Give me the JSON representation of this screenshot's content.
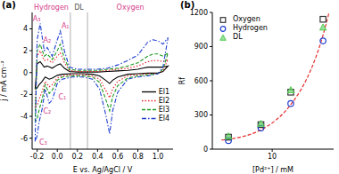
{
  "chart_data": [
    {
      "type": "line",
      "title": "(a)",
      "x_label": "E vs. Ag/AgCl / V",
      "y_label": "j / mA cm⁻²",
      "xlim": [
        -0.25,
        1.15
      ],
      "xticks": [
        -0.2,
        {
          "value": 0,
          "label": "0.0"
        },
        0.2,
        0.4,
        0.6,
        0.8,
        {
          "value": 1,
          "label": "1.0"
        }
      ],
      "ylim": [
        -7,
        5.5
      ],
      "yticks": [
        -6,
        -4,
        -2,
        0,
        2,
        4
      ],
      "legend": "center right",
      "x": [
        -0.22,
        -0.2,
        -0.17,
        -0.13,
        -0.1,
        -0.05,
        0.0,
        0.03,
        0.07,
        0.12,
        0.2,
        0.3,
        0.4,
        0.5,
        0.6,
        0.7,
        0.8,
        0.85,
        0.9,
        0.95,
        1.0,
        1.05,
        1.1,
        1.05,
        1.0,
        0.9,
        0.8,
        0.7,
        0.6,
        0.55,
        0.52,
        0.48,
        0.42,
        0.35,
        0.25,
        0.15,
        0.05,
        0.0,
        -0.05,
        -0.08,
        -0.12,
        -0.15,
        -0.18,
        -0.2,
        -0.22
      ],
      "series": [
        {
          "name": "El1",
          "color": "#000000",
          "line_style": "solid",
          "values": [
            -1.5,
            0.8,
            1.0,
            0.5,
            0.6,
            0.4,
            0.7,
            0.8,
            0.4,
            0.1,
            0.05,
            0.05,
            0.05,
            0.1,
            0.15,
            0.2,
            0.3,
            0.4,
            0.5,
            0.5,
            0.5,
            0.5,
            0.6,
            0.1,
            -0.05,
            -0.05,
            -0.1,
            -0.15,
            -0.4,
            -0.7,
            -1.0,
            -0.7,
            -0.3,
            -0.15,
            -0.1,
            -0.1,
            -0.15,
            -0.25,
            -0.5,
            -0.6,
            -0.4,
            -0.8,
            -1.1,
            -1.4,
            -1.5
          ]
        },
        {
          "name": "El2",
          "color": "#e8202a",
          "line_style": "dotted",
          "values": [
            -3.2,
            1.5,
            2.0,
            1.1,
            1.2,
            0.9,
            1.5,
            1.8,
            0.9,
            0.2,
            0.1,
            0.1,
            0.1,
            0.2,
            0.3,
            0.4,
            0.6,
            0.8,
            1.0,
            1.1,
            1.1,
            1.0,
            1.2,
            0.2,
            -0.1,
            -0.1,
            -0.2,
            -0.3,
            -0.8,
            -1.5,
            -2.3,
            -1.6,
            -0.6,
            -0.3,
            -0.2,
            -0.2,
            -0.3,
            -0.5,
            -1.1,
            -1.3,
            -0.8,
            -1.7,
            -2.4,
            -3.0,
            -3.2
          ]
        },
        {
          "name": "El3",
          "color": "#1e9a1e",
          "line_style": "dashed",
          "values": [
            -4.5,
            2.0,
            2.6,
            1.5,
            1.7,
            1.2,
            2.0,
            2.6,
            1.3,
            0.3,
            0.2,
            0.2,
            0.2,
            0.3,
            0.4,
            0.6,
            0.9,
            1.2,
            1.5,
            1.7,
            1.7,
            1.5,
            1.8,
            0.3,
            -0.1,
            -0.2,
            -0.3,
            -0.5,
            -1.2,
            -2.2,
            -3.5,
            -2.4,
            -0.9,
            -0.4,
            -0.3,
            -0.3,
            -0.4,
            -0.7,
            -1.6,
            -1.9,
            -1.1,
            -2.4,
            -3.4,
            -4.2,
            -4.5
          ]
        },
        {
          "name": "El4",
          "color": "#1f3fd0",
          "line_style": "dashdot",
          "values": [
            -6.3,
            3.0,
            4.5,
            2.0,
            2.3,
            1.5,
            3.0,
            3.8,
            2.0,
            0.5,
            0.3,
            0.3,
            0.3,
            0.4,
            0.7,
            1.1,
            1.6,
            2.2,
            2.8,
            3.0,
            2.9,
            2.6,
            3.2,
            0.5,
            -0.1,
            -0.3,
            -0.4,
            -0.6,
            -1.8,
            -3.5,
            -5.6,
            -3.8,
            -1.5,
            -0.6,
            -0.4,
            -0.4,
            -0.6,
            -1.0,
            -2.5,
            -2.8,
            -1.5,
            -3.3,
            -4.5,
            -5.8,
            -6.3
          ]
        }
      ],
      "regions": [
        {
          "label": "Hydrogen",
          "from": -0.25,
          "to": 0.13,
          "color": "#d6408a"
        },
        {
          "label": "DL",
          "from": 0.13,
          "to": 0.3,
          "color": "#555555"
        },
        {
          "label": "Oxygen",
          "from": 0.3,
          "to": 1.15,
          "color": "#d6408a"
        }
      ],
      "annotations": [
        {
          "text": "A₃",
          "x": -0.205,
          "y": 4.9,
          "color": "#d6408a"
        },
        {
          "text": "A₂",
          "x": -0.1,
          "y": 3.0,
          "color": "#d6408a"
        },
        {
          "text": "A₁",
          "x": 0.08,
          "y": 4.3,
          "color": "#d6408a"
        },
        {
          "text": "C₁",
          "x": 0.05,
          "y": -2.2,
          "color": "#d6408a"
        },
        {
          "text": "C₂",
          "x": -0.1,
          "y": -3.5,
          "color": "#d6408a"
        },
        {
          "text": "C₃",
          "x": -0.14,
          "y": -6.4,
          "color": "#d6408a"
        }
      ]
    },
    {
      "type": "scatter",
      "title": "(b)",
      "x_label": "[Pd²⁺] / mM",
      "y_label": "Rf",
      "log": "x",
      "xlim": [
        1.5,
        70
      ],
      "xticks": [
        10
      ],
      "ylim": [
        0,
        1200
      ],
      "yticks": [
        0,
        300,
        600,
        900,
        1200
      ],
      "legend": "upper left",
      "series": [
        {
          "name": "Oxygen",
          "color": "#333333",
          "marker": "square",
          "x": [
            2.5,
            7,
            18,
            50
          ],
          "values": [
            105,
            215,
            500,
            1140
          ]
        },
        {
          "name": "Hydrogen",
          "color": "#1f3fd0",
          "marker": "circle",
          "x": [
            2.5,
            7,
            18,
            50
          ],
          "values": [
            75,
            185,
            400,
            950
          ]
        },
        {
          "name": "DL",
          "color": "#55cc55",
          "marker": "triangle",
          "x": [
            2.5,
            7,
            18,
            50
          ],
          "values": [
            115,
            225,
            520,
            1070
          ]
        },
        {
          "type": "line",
          "color": "#e53030",
          "line_style": "dashed",
          "x": [
            2,
            3,
            5,
            7,
            10,
            15,
            20,
            30,
            40,
            50,
            60
          ],
          "values": [
            80,
            95,
            130,
            170,
            230,
            330,
            430,
            620,
            810,
            1000,
            1190
          ]
        }
      ]
    }
  ]
}
